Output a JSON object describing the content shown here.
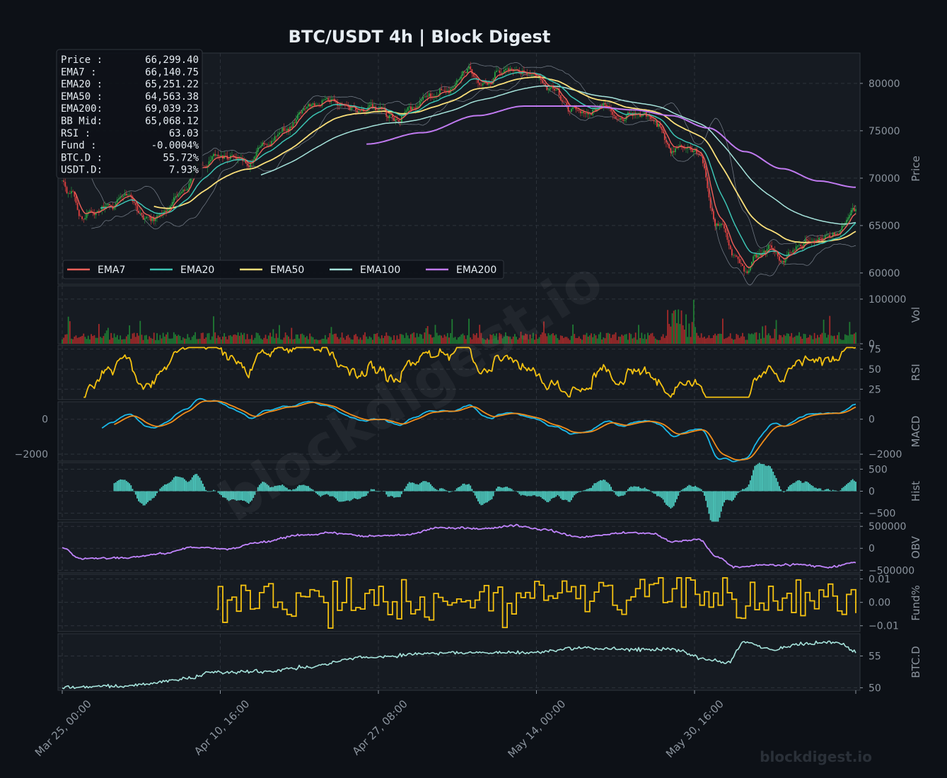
{
  "chart_data": {
    "type": "line",
    "title": "BTC/USDT  4h  |  Block Digest",
    "watermark_center": "blockdigest.io",
    "watermark_corner": "blockdigest.io",
    "x_ticks": [
      "Mar 25, 00:00",
      "Apr 10, 16:00",
      "Apr 27, 08:00",
      "May 14, 00:00",
      "May 30, 16:00"
    ],
    "info_box": [
      {
        "label": "Price :",
        "value": "66,299.40"
      },
      {
        "label": "EMA7  :",
        "value": "66,140.75"
      },
      {
        "label": "EMA20 :",
        "value": "65,251.22"
      },
      {
        "label": "EMA50 :",
        "value": "64,563.38"
      },
      {
        "label": "EMA200:",
        "value": "69,039.23"
      },
      {
        "label": "BB Mid:",
        "value": "65,068.12"
      },
      {
        "label": "RSI   :",
        "value": "63.03"
      },
      {
        "label": "Fund  :",
        "value": "-0.0004%"
      },
      {
        "label": "BTC.D :",
        "value": "55.72%"
      },
      {
        "label": "USDT.D:",
        "value": "7.93%"
      }
    ],
    "legend": [
      {
        "name": "EMA7",
        "color": "#f0605a"
      },
      {
        "name": "EMA20",
        "color": "#3cc4b4"
      },
      {
        "name": "EMA50",
        "color": "#fbe07a"
      },
      {
        "name": "EMA100",
        "color": "#a6e4dc"
      },
      {
        "name": "EMA200",
        "color": "#c07af0"
      }
    ],
    "colors": {
      "up": "#26a641",
      "down": "#e04040",
      "grid": "#2d333b",
      "text": "#8b949e",
      "panel": "#161b22"
    },
    "panels": [
      {
        "id": "price",
        "ylabel": "Price",
        "ticks": [
          {
            "v": 60000,
            "t": "60000"
          },
          {
            "v": 65000,
            "t": "65000"
          },
          {
            "v": 70000,
            "t": "70000"
          },
          {
            "v": 75000,
            "t": "75000"
          },
          {
            "v": 80000,
            "t": "80000"
          }
        ],
        "ylim": [
          58800,
          83200
        ]
      },
      {
        "id": "vol",
        "ylabel": "Vol",
        "ticks": [
          {
            "v": 0,
            "t": "0"
          },
          {
            "v": 100000,
            "t": "100000"
          }
        ],
        "ylim": [
          0,
          130000
        ]
      },
      {
        "id": "rsi",
        "ylabel": "RSI",
        "ticks": [
          {
            "v": 25,
            "t": "25"
          },
          {
            "v": 50,
            "t": "50"
          },
          {
            "v": 75,
            "t": "75"
          }
        ],
        "ylim": [
          12,
          80
        ]
      },
      {
        "id": "macd",
        "ylabel": "MACD",
        "ticks": [
          {
            "v": 0,
            "t": "0"
          },
          {
            "v": -2000,
            "t": "−2000"
          }
        ],
        "left_ticks": [
          {
            "v": 0,
            "t": "0"
          },
          {
            "v": -2000,
            "t": "−2000"
          }
        ],
        "ylim": [
          -2400,
          1000
        ]
      },
      {
        "id": "hist",
        "ylabel": "Hist",
        "ticks": [
          {
            "v": -500,
            "t": "−500"
          },
          {
            "v": 0,
            "t": "0"
          },
          {
            "v": 500,
            "t": "500"
          }
        ],
        "ylim": [
          -650,
          650
        ]
      },
      {
        "id": "obv",
        "ylabel": "OBV",
        "ticks": [
          {
            "v": -500000,
            "t": "−500000"
          },
          {
            "v": 0,
            "t": "0"
          },
          {
            "v": 500000,
            "t": "500000"
          }
        ],
        "ylim": [
          -560000,
          600000
        ]
      },
      {
        "id": "fund",
        "ylabel": "Fund%",
        "ticks": [
          {
            "v": -0.01,
            "t": "−0.01"
          },
          {
            "v": 0,
            "t": "0.00"
          },
          {
            "v": 0.01,
            "t": "0.01"
          }
        ],
        "ylim": [
          -0.0125,
          0.012
        ]
      },
      {
        "id": "btcd",
        "ylabel": "BTC.D",
        "ticks": [
          {
            "v": 50,
            "t": "50"
          },
          {
            "v": 55,
            "t": "55"
          }
        ],
        "ylim": [
          49.6,
          58.5
        ]
      }
    ],
    "price_keypoints": [
      {
        "d": "2024-03-25",
        "p": 69600
      },
      {
        "d": "2024-03-26",
        "p": 68400
      },
      {
        "d": "2024-03-27",
        "p": 65800
      },
      {
        "d": "2024-03-28",
        "p": 66600
      },
      {
        "d": "2024-03-30",
        "p": 66800
      },
      {
        "d": "2024-04-01",
        "p": 68200
      },
      {
        "d": "2024-04-03",
        "p": 66500
      },
      {
        "d": "2024-04-05",
        "p": 66600
      },
      {
        "d": "2024-04-07",
        "p": 69000
      },
      {
        "d": "2024-04-09",
        "p": 71500
      },
      {
        "d": "2024-04-11",
        "p": 72500
      },
      {
        "d": "2024-04-13",
        "p": 71700
      },
      {
        "d": "2024-04-14",
        "p": 70300
      },
      {
        "d": "2024-04-16",
        "p": 74000
      },
      {
        "d": "2024-04-18",
        "p": 75500
      },
      {
        "d": "2024-04-21",
        "p": 77500
      },
      {
        "d": "2024-04-23",
        "p": 78200
      },
      {
        "d": "2024-04-26",
        "p": 77300
      },
      {
        "d": "2024-04-28",
        "p": 77600
      },
      {
        "d": "2024-04-30",
        "p": 75800
      },
      {
        "d": "2024-05-02",
        "p": 76900
      },
      {
        "d": "2024-05-04",
        "p": 78300
      },
      {
        "d": "2024-05-06",
        "p": 79600
      },
      {
        "d": "2024-05-08",
        "p": 81600
      },
      {
        "d": "2024-05-10",
        "p": 80200
      },
      {
        "d": "2024-05-12",
        "p": 81200
      },
      {
        "d": "2024-05-13",
        "p": 81600
      },
      {
        "d": "2024-05-15",
        "p": 80400
      },
      {
        "d": "2024-05-17",
        "p": 79300
      },
      {
        "d": "2024-05-19",
        "p": 77500
      },
      {
        "d": "2024-05-21",
        "p": 76800
      },
      {
        "d": "2024-05-23",
        "p": 77400
      },
      {
        "d": "2024-05-24",
        "p": 75500
      },
      {
        "d": "2024-05-26",
        "p": 77100
      },
      {
        "d": "2024-05-28",
        "p": 76500
      },
      {
        "d": "2024-05-30",
        "p": 73500
      },
      {
        "d": "2024-06-01",
        "p": 73900
      },
      {
        "d": "2024-06-02",
        "p": 72500
      },
      {
        "d": "2024-06-04",
        "p": 65500
      },
      {
        "d": "2024-06-06",
        "p": 61300
      },
      {
        "d": "2024-06-07",
        "p": 60000
      },
      {
        "d": "2024-06-08",
        "p": 61700
      },
      {
        "d": "2024-06-10",
        "p": 62700
      },
      {
        "d": "2024-06-11",
        "p": 61600
      },
      {
        "d": "2024-06-13",
        "p": 63200
      },
      {
        "d": "2024-06-15",
        "p": 63800
      },
      {
        "d": "2024-06-17",
        "p": 64500
      },
      {
        "d": "2024-06-18",
        "p": 65300
      },
      {
        "d": "2024-06-19",
        "p": 66299.4
      }
    ],
    "ema200_keypoints": [
      {
        "d": "2024-04-27",
        "p": 73600
      },
      {
        "d": "2024-05-03",
        "p": 74800
      },
      {
        "d": "2024-05-09",
        "p": 76600
      },
      {
        "d": "2024-05-14",
        "p": 77600
      },
      {
        "d": "2024-05-21",
        "p": 77600
      },
      {
        "d": "2024-05-26",
        "p": 77200
      },
      {
        "d": "2024-05-30",
        "p": 76600
      },
      {
        "d": "2024-06-03",
        "p": 75300
      },
      {
        "d": "2024-06-07",
        "p": 72800
      },
      {
        "d": "2024-06-11",
        "p": 71000
      },
      {
        "d": "2024-06-15",
        "p": 69700
      },
      {
        "d": "2024-06-19",
        "p": 69039.23
      }
    ],
    "obv_keypoints": [
      {
        "d": "2024-03-25",
        "v": 20000
      },
      {
        "d": "2024-03-27",
        "v": -240000
      },
      {
        "d": "2024-04-01",
        "v": -210000
      },
      {
        "d": "2024-04-05",
        "v": -120000
      },
      {
        "d": "2024-04-08",
        "v": 30000
      },
      {
        "d": "2024-04-12",
        "v": -20000
      },
      {
        "d": "2024-04-15",
        "v": 130000
      },
      {
        "d": "2024-04-20",
        "v": 300000
      },
      {
        "d": "2024-04-23",
        "v": 350000
      },
      {
        "d": "2024-04-27",
        "v": 280000
      },
      {
        "d": "2024-05-01",
        "v": 300000
      },
      {
        "d": "2024-05-05",
        "v": 470000
      },
      {
        "d": "2024-05-10",
        "v": 450000
      },
      {
        "d": "2024-05-13",
        "v": 520000
      },
      {
        "d": "2024-05-16",
        "v": 430000
      },
      {
        "d": "2024-05-20",
        "v": 260000
      },
      {
        "d": "2024-05-25",
        "v": 350000
      },
      {
        "d": "2024-05-28",
        "v": 340000
      },
      {
        "d": "2024-05-30",
        "v": 150000
      },
      {
        "d": "2024-06-02",
        "v": 200000
      },
      {
        "d": "2024-06-04",
        "v": -200000
      },
      {
        "d": "2024-06-06",
        "v": -430000
      },
      {
        "d": "2024-06-09",
        "v": -380000
      },
      {
        "d": "2024-06-13",
        "v": -370000
      },
      {
        "d": "2024-06-16",
        "v": -430000
      },
      {
        "d": "2024-06-19",
        "v": -330000
      }
    ],
    "btcd_keypoints": [
      {
        "d": "2024-03-25",
        "v": 50.1
      },
      {
        "d": "2024-04-01",
        "v": 50.3
      },
      {
        "d": "2024-04-08",
        "v": 51.5
      },
      {
        "d": "2024-04-10",
        "v": 52.4
      },
      {
        "d": "2024-04-16",
        "v": 52.6
      },
      {
        "d": "2024-04-20",
        "v": 53.2
      },
      {
        "d": "2024-04-27",
        "v": 54.8
      },
      {
        "d": "2024-05-05",
        "v": 55.5
      },
      {
        "d": "2024-05-14",
        "v": 55.5
      },
      {
        "d": "2024-05-20",
        "v": 56.2
      },
      {
        "d": "2024-05-30",
        "v": 56.0
      },
      {
        "d": "2024-06-03",
        "v": 54.5
      },
      {
        "d": "2024-06-05",
        "v": 53.9
      },
      {
        "d": "2024-06-07",
        "v": 57.3
      },
      {
        "d": "2024-06-10",
        "v": 56.0
      },
      {
        "d": "2024-06-13",
        "v": 56.8
      },
      {
        "d": "2024-06-17",
        "v": 57.2
      },
      {
        "d": "2024-06-19",
        "v": 55.72
      }
    ],
    "date_range": [
      "2024-03-25",
      "2024-06-19"
    ]
  }
}
